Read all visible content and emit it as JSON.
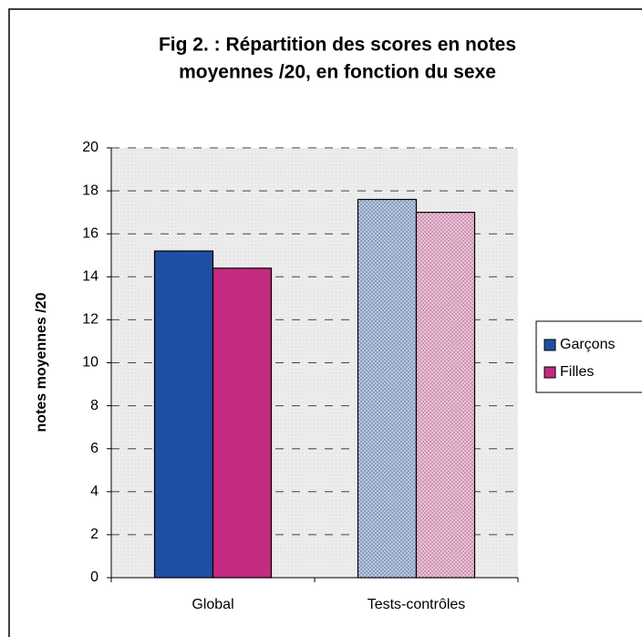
{
  "chart_data": {
    "type": "bar",
    "title": [
      "Fig 2. : Répartition des scores en notes",
      "moyennes /20, en fonction du sexe"
    ],
    "y_label": "notes moyennes /20",
    "categories": [
      "Global",
      "Tests-contrôles"
    ],
    "series": [
      {
        "name": "Garçons",
        "color": "#1f4fa3",
        "values": [
          15.2,
          17.6
        ]
      },
      {
        "name": "Filles",
        "color": "#c42a80",
        "values": [
          14.4,
          17.0
        ]
      }
    ],
    "ylim": [
      0,
      20
    ],
    "yticks": [
      0,
      2,
      4,
      6,
      8,
      10,
      12,
      14,
      16,
      18,
      20
    ],
    "grid": true,
    "legend": "right"
  }
}
